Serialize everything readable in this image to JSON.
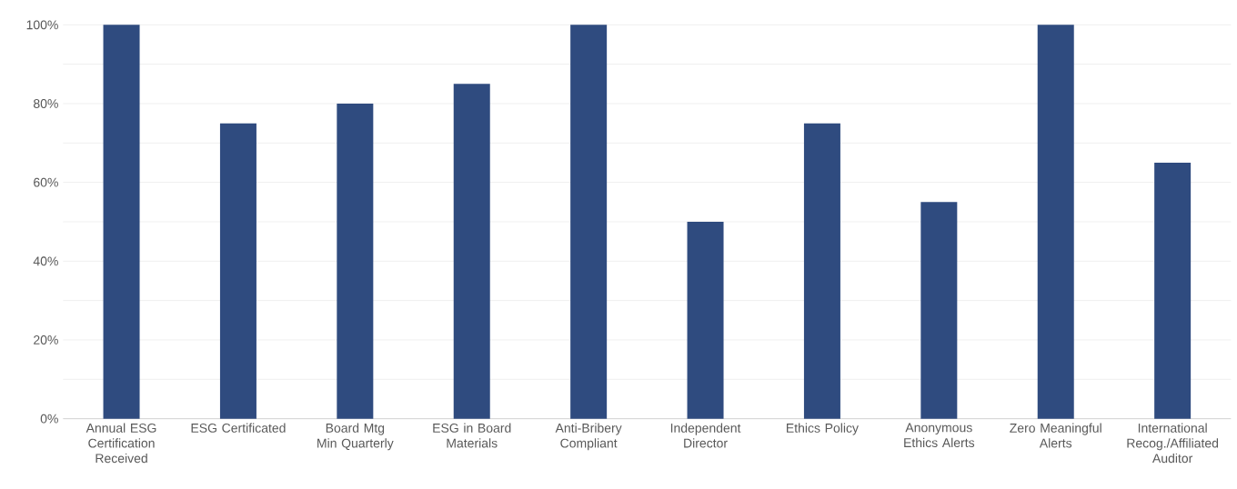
{
  "chart_data": {
    "type": "bar",
    "categories": [
      "Annual ESG Certification Received",
      "ESG Certificated",
      "Board Mtg Min Quarterly",
      "ESG in Board Materials",
      "Anti-Bribery Compliant",
      "Independent Director",
      "Ethics Policy",
      "Anonymous Ethics Alerts",
      "Zero Meaningful Alerts",
      "International Recog./Affiliated Auditor"
    ],
    "values": [
      100,
      75,
      80,
      85,
      100,
      50,
      75,
      55,
      100,
      65
    ],
    "color": "#2f4b7f",
    "ylim": [
      0,
      100
    ],
    "yticks": [
      {
        "value": 0,
        "label": "0%"
      },
      {
        "value": 10,
        "label": null
      },
      {
        "value": 20,
        "label": "20%"
      },
      {
        "value": 30,
        "label": null
      },
      {
        "value": 40,
        "label": "40%"
      },
      {
        "value": 50,
        "label": null
      },
      {
        "value": 60,
        "label": "60%"
      },
      {
        "value": 70,
        "label": null
      },
      {
        "value": 80,
        "label": "80%"
      },
      {
        "value": 90,
        "label": null
      },
      {
        "value": 100,
        "label": "100%"
      }
    ],
    "grid": "y"
  }
}
